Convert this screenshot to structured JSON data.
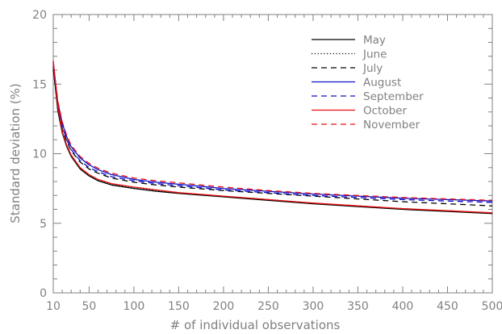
{
  "chart_data": {
    "type": "line",
    "xlabel": "# of individual observations",
    "ylabel": "Standard deviation (%)",
    "xlim": [
      10,
      500
    ],
    "ylim": [
      0,
      20
    ],
    "xticks": [
      10,
      50,
      100,
      150,
      200,
      250,
      300,
      350,
      400,
      450,
      500
    ],
    "yticks": [
      0,
      5,
      10,
      15,
      20
    ],
    "grid": false,
    "legend_position": "top-right",
    "x": [
      10,
      15,
      20,
      25,
      30,
      40,
      50,
      60,
      75,
      100,
      125,
      150,
      200,
      250,
      300,
      350,
      400,
      450,
      500
    ],
    "series": [
      {
        "name": "May",
        "color": "#000000",
        "dash": "solid",
        "values": [
          16.2,
          13.1,
          11.5,
          10.5,
          9.8,
          8.9,
          8.4,
          8.05,
          7.75,
          7.5,
          7.3,
          7.15,
          6.9,
          6.65,
          6.4,
          6.2,
          6.0,
          5.85,
          5.7
        ]
      },
      {
        "name": "June",
        "color": "#000000",
        "dash": "dotted",
        "values": [
          16.3,
          13.2,
          11.6,
          10.6,
          9.9,
          9.0,
          8.45,
          8.1,
          7.8,
          7.55,
          7.35,
          7.2,
          6.95,
          6.7,
          6.45,
          6.25,
          6.05,
          5.9,
          5.75
        ]
      },
      {
        "name": "July",
        "color": "#000000",
        "dash": "dashed",
        "values": [
          16.1,
          13.3,
          11.8,
          10.9,
          10.2,
          9.4,
          8.9,
          8.6,
          8.25,
          7.95,
          7.75,
          7.6,
          7.35,
          7.15,
          6.95,
          6.75,
          6.55,
          6.4,
          6.25
        ]
      },
      {
        "name": "August",
        "color": "#1010c8",
        "dash": "solid",
        "values": [
          16.6,
          13.7,
          12.2,
          11.2,
          10.5,
          9.7,
          9.2,
          8.85,
          8.5,
          8.15,
          7.95,
          7.8,
          7.5,
          7.3,
          7.1,
          6.95,
          6.8,
          6.7,
          6.6
        ]
      },
      {
        "name": "September",
        "color": "#1010c8",
        "dash": "dashed",
        "values": [
          16.4,
          13.5,
          12.0,
          11.0,
          10.3,
          9.5,
          9.0,
          8.7,
          8.35,
          8.05,
          7.85,
          7.7,
          7.4,
          7.2,
          7.0,
          6.85,
          6.7,
          6.6,
          6.5
        ]
      },
      {
        "name": "October",
        "color": "#e81010",
        "dash": "solid",
        "values": [
          16.7,
          13.4,
          11.6,
          10.6,
          9.9,
          9.0,
          8.5,
          8.15,
          7.85,
          7.6,
          7.4,
          7.2,
          6.95,
          6.7,
          6.45,
          6.25,
          6.05,
          5.9,
          5.75
        ]
      },
      {
        "name": "November",
        "color": "#e81010",
        "dash": "dashed",
        "values": [
          16.5,
          13.8,
          12.3,
          11.3,
          10.6,
          9.8,
          9.3,
          8.95,
          8.6,
          8.25,
          8.05,
          7.9,
          7.6,
          7.35,
          7.15,
          7.0,
          6.85,
          6.75,
          6.65
        ]
      }
    ]
  }
}
